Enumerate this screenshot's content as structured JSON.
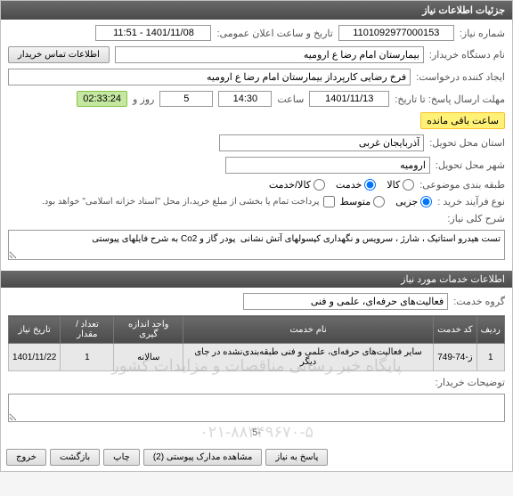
{
  "header": {
    "title": "جزئیات اطلاعات نیاز"
  },
  "fields": {
    "need_number_label": "شماره نیاز:",
    "need_number": "1101092977000153",
    "announce_label": "تاریخ و ساعت اعلان عمومی:",
    "announce_value": "1401/11/08 - 11:51",
    "org_label": "نام دستگاه خریدار:",
    "org_value": "بیمارستان امام رضا  ع  ارومیه",
    "contact_btn": "اطلاعات تماس خریدار",
    "creator_label": "ایجاد کننده درخواست:",
    "creator_value": "فرخ رضایی کارپرداز بیمارستان امام رضا  ع  ارومیه",
    "deadline_label": "مهلت ارسال پاسخ: تا تاریخ:",
    "deadline_date": "1401/11/13",
    "time_label": "ساعت",
    "deadline_time": "14:30",
    "days_value": "5",
    "days_label": "روز و",
    "countdown": "02:33:24",
    "remain_label": "ساعت باقی مانده",
    "province_label": "استان محل تحویل:",
    "province_value": "آذربایجان غربی",
    "city_label": "شهر محل تحویل:",
    "city_value": "ارومیه",
    "pack_label": "طبقه بندی موضوعی:",
    "pack_opts": {
      "goods": "کالا",
      "service": "خدمت",
      "both": "کالا/خدمت"
    },
    "pack_selected": "service",
    "buy_label": "نوع فرآیند خرید :",
    "buy_opts": {
      "small": "جزیی",
      "medium": "متوسط"
    },
    "buy_selected": "small",
    "partial_check_label": "پرداخت تمام یا بخشی از مبلغ خرید،از محل \"اسناد خزانه اسلامی\" خواهد بود.",
    "desc_label": "شرح کلی نیاز:",
    "desc_value": "تست هیدرو استاتیک ، شارژ ، سرویس و نگهداری کپسولهای آتش نشانی  پودر گاز و Co2 به شرح فایلهای پیوستی"
  },
  "services_bar": "اطلاعات خدمات مورد نیاز",
  "group_label": "گروه خدمت:",
  "group_value": "فعالیت‌های حرفه‌ای، علمی و فنی",
  "table": {
    "cols": [
      "ردیف",
      "کد خدمت",
      "نام خدمت",
      "واحد اندازه گیری",
      "تعداد / مقدار",
      "تاریخ نیاز"
    ],
    "rows": [
      [
        "1",
        "ز-74-749",
        "سایر فعالیت‌های حرفه‌ای، علمی و فنی طبقه‌بندی‌نشده در جای دیگر",
        "سالانه",
        "1",
        "1401/11/22"
      ]
    ]
  },
  "buyer_notes_label": "توضیحات خریدار:",
  "pager": "-5",
  "buttons": {
    "reply": "پاسخ به نیاز",
    "docs": "مشاهده مدارک پیوستی (2)",
    "print": "چاپ",
    "back": "بازگشت",
    "exit": "خروج"
  },
  "watermark": {
    "line": "پایگاه خبر رسانی مناقصات و مزایدات کشور",
    "phone": "۰۲۱-۸۸۳۴۹۶۷۰-۵"
  }
}
